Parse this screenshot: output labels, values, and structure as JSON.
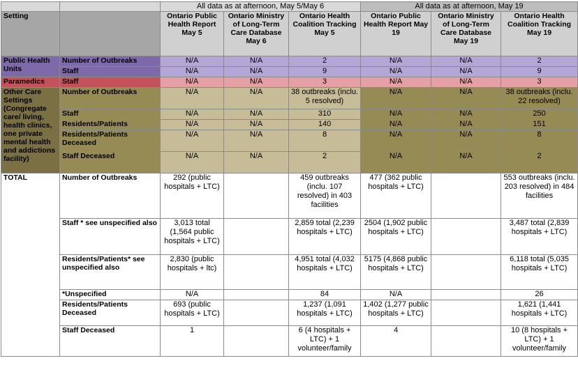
{
  "headers": {
    "group_may5_6": "All data as at afternoon, May 5/May 6",
    "group_may19": "All data as at afternoon, May 19",
    "setting": "Setting",
    "cols": [
      "Ontario Public Health Report May 5",
      "Ontario Ministry of Long-Term Care Database May 6",
      "Ontario Health Coalition Tracking May 5",
      "Ontario Public Health Report May 19",
      "Ontario Ministry of Long-Term Care Database May 19",
      "Ontario Health Coalition Tracking May 19"
    ]
  },
  "settings": {
    "public_health_units": "Public Health Units",
    "paramedics": "Paramedics",
    "other_care": "Other Care Settings (Congregate care/ living, health clinics, one private mental health and addictions facility)",
    "total": "TOTAL"
  },
  "rows": {
    "phu_outbreaks": {
      "label": "Number of Outbreaks",
      "cells": [
        "N/A",
        "N/A",
        "2",
        "N/A",
        "N/A",
        "2"
      ]
    },
    "phu_staff": {
      "label": "Staff",
      "cells": [
        "N/A",
        "N/A",
        "9",
        "N/A",
        "N/A",
        "9"
      ]
    },
    "par_staff": {
      "label": "Staff",
      "cells": [
        "N/A",
        "N/A",
        "3",
        "N/A",
        "N/A",
        "3"
      ]
    },
    "oth_outbreaks": {
      "label": "Number of Outbreaks",
      "cells": [
        "N/A",
        "N/A",
        "38 outbreaks (inclu. 5 resolved)",
        "N/A",
        "N/A",
        "38 outbreaks (inclu. 22 resolved)"
      ]
    },
    "oth_staff": {
      "label": "Staff",
      "cells": [
        "N/A",
        "N/A",
        "310",
        "N/A",
        "N/A",
        "250"
      ]
    },
    "oth_residents": {
      "label": "Residents/Patients",
      "cells": [
        "N/A",
        "N/A",
        "140",
        "N/A",
        "N/A",
        "151"
      ]
    },
    "oth_res_deceased": {
      "label": "Residents/Patients Deceased",
      "cells": [
        "N/A",
        "N/A",
        "8",
        "N/A",
        "N/A",
        "8"
      ]
    },
    "oth_staff_deceased": {
      "label": "Staff Deceased",
      "cells": [
        "N/A",
        "N/A",
        "2",
        "N/A",
        "N/A",
        "2"
      ]
    },
    "tot_outbreaks": {
      "label": "Number of Outbreaks",
      "cells": [
        "292 (public hospitals + LTC)",
        "",
        "459 outbreaks (inclu. 107 resolved) in 403 facilities",
        "477 (362 public hospitals + LTC)",
        "",
        "553 outbreaks (inclu. 203 resolved) in 484 facilities"
      ]
    },
    "tot_staff": {
      "label": "Staff * see unspecified also",
      "cells": [
        "3,013 total (1,564 public hospitals + LTC)",
        "",
        "2,859 total (2,239 hospitals + LTC)",
        "2504 (1,902 public hospitals + LTC)",
        "",
        "3,487 total (2,839 hospitals + LTC)"
      ]
    },
    "tot_residents": {
      "label": "Residents/Patients* see unspecified also",
      "cells": [
        "2,830 (public hospitals + ltc)",
        "",
        "4,951 total (4,032 hospitals + LTC)",
        "5175 (4,868 public hospitals + LTC)",
        "",
        "6,118 total (5,035 hospitals + LTC)"
      ]
    },
    "tot_unspecified": {
      "label": "*Unspecified",
      "cells": [
        "N/A",
        "",
        "84",
        "N/A",
        "",
        "26"
      ]
    },
    "tot_res_deceased": {
      "label": "Residents/Patients Deceased",
      "cells": [
        "693 (public hospitals + LTC)",
        "",
        "1,237 (1,091 hospitals + LTC)",
        "1,402 (1,277 public hospitals + LTC)",
        "",
        "1,621 (1,441 hospitals + LTC)"
      ]
    },
    "tot_staff_deceased": {
      "label": "Staff Deceased",
      "cells": [
        "1",
        "",
        "6 (4 hospitals + LTC) + 1 volunteer/family",
        "4",
        "",
        "10 (8 hospitals + LTC) + 1 volunteer/family"
      ]
    }
  },
  "colors": {
    "header_gray": "#d0d0d0",
    "public_health": "#b4a7d6",
    "paramedics": "#e4a0a4",
    "other_care": "#c6bc97",
    "other_care_dark": "#968a55"
  }
}
